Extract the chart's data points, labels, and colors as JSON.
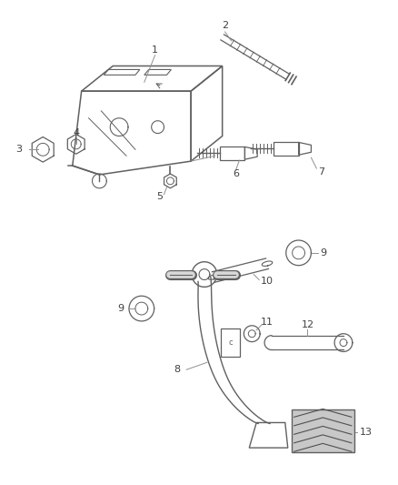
{
  "bg_color": "#ffffff",
  "line_color": "#606060",
  "label_color": "#404040",
  "callout_color": "#909090",
  "label_fontsize": 8,
  "fig_width": 4.38,
  "fig_height": 5.33,
  "dpi": 100
}
